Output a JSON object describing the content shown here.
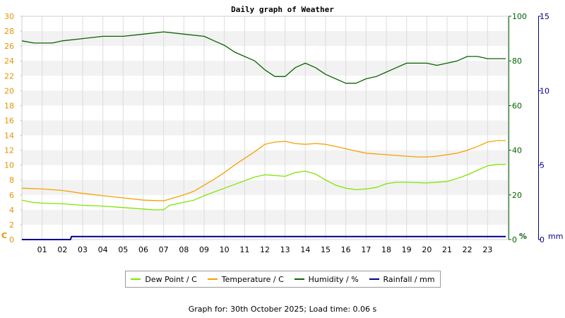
{
  "chart_data": {
    "type": "line",
    "title": "Daily graph of Weather",
    "x_ticks": [
      "01",
      "02",
      "03",
      "04",
      "05",
      "06",
      "07",
      "08",
      "09",
      "10",
      "11",
      "12",
      "13",
      "14",
      "15",
      "16",
      "17",
      "18",
      "19",
      "20",
      "21",
      "22",
      "23"
    ],
    "xlim": [
      0,
      24
    ],
    "grid": true,
    "legend_position": "bottom",
    "axes": {
      "left": {
        "unit": "C",
        "range": [
          0,
          30
        ],
        "ticks": [
          0,
          2,
          4,
          6,
          8,
          10,
          12,
          14,
          16,
          18,
          20,
          22,
          24,
          26,
          28,
          30
        ],
        "color": "#e59400"
      },
      "right1": {
        "unit": "%",
        "range": [
          0,
          100
        ],
        "ticks": [
          0,
          20,
          40,
          60,
          80,
          100
        ],
        "color": "#006400"
      },
      "right2": {
        "unit": "mm",
        "range": [
          0,
          15
        ],
        "ticks": [
          0,
          5,
          10,
          15
        ],
        "color": "#00008b"
      }
    },
    "series": [
      {
        "name": "Dew Point / C",
        "axis": "left",
        "color": "#7fe600",
        "points": [
          [
            0,
            5.3
          ],
          [
            0.5,
            5.0
          ],
          [
            1,
            4.9
          ],
          [
            2,
            4.8
          ],
          [
            3,
            4.6
          ],
          [
            4,
            4.5
          ],
          [
            5,
            4.3
          ],
          [
            6,
            4.1
          ],
          [
            6.5,
            4.0
          ],
          [
            7,
            4.0
          ],
          [
            7.3,
            4.6
          ],
          [
            8,
            5.0
          ],
          [
            8.5,
            5.3
          ],
          [
            9,
            5.9
          ],
          [
            10,
            6.9
          ],
          [
            11,
            7.9
          ],
          [
            11.5,
            8.4
          ],
          [
            12,
            8.7
          ],
          [
            12.5,
            8.6
          ],
          [
            13,
            8.5
          ],
          [
            13.5,
            9.0
          ],
          [
            14,
            9.2
          ],
          [
            14.5,
            8.8
          ],
          [
            15,
            8.0
          ],
          [
            15.5,
            7.3
          ],
          [
            16,
            6.9
          ],
          [
            16.5,
            6.7
          ],
          [
            17,
            6.8
          ],
          [
            17.5,
            7.0
          ],
          [
            18,
            7.5
          ],
          [
            18.5,
            7.7
          ],
          [
            19,
            7.7
          ],
          [
            20,
            7.6
          ],
          [
            21,
            7.8
          ],
          [
            21.5,
            8.2
          ],
          [
            22,
            8.7
          ],
          [
            22.5,
            9.3
          ],
          [
            23,
            9.9
          ],
          [
            23.5,
            10.1
          ],
          [
            23.9,
            10.1
          ]
        ]
      },
      {
        "name": "Temperature / C",
        "axis": "left",
        "color": "#f5a200",
        "points": [
          [
            0,
            6.9
          ],
          [
            1,
            6.8
          ],
          [
            2,
            6.6
          ],
          [
            3,
            6.2
          ],
          [
            4,
            5.9
          ],
          [
            5,
            5.6
          ],
          [
            6,
            5.3
          ],
          [
            7,
            5.2
          ],
          [
            7.5,
            5.6
          ],
          [
            8,
            6.0
          ],
          [
            8.5,
            6.5
          ],
          [
            9,
            7.3
          ],
          [
            9.5,
            8.1
          ],
          [
            10,
            9.0
          ],
          [
            10.5,
            10.0
          ],
          [
            11,
            10.9
          ],
          [
            11.5,
            11.8
          ],
          [
            12,
            12.8
          ],
          [
            12.5,
            13.1
          ],
          [
            13,
            13.2
          ],
          [
            13.5,
            12.9
          ],
          [
            14,
            12.8
          ],
          [
            14.5,
            12.9
          ],
          [
            15,
            12.8
          ],
          [
            15.5,
            12.5
          ],
          [
            16,
            12.2
          ],
          [
            16.5,
            11.9
          ],
          [
            17,
            11.6
          ],
          [
            17.5,
            11.5
          ],
          [
            18,
            11.4
          ],
          [
            18.5,
            11.3
          ],
          [
            19,
            11.2
          ],
          [
            19.5,
            11.1
          ],
          [
            20,
            11.1
          ],
          [
            20.5,
            11.2
          ],
          [
            21,
            11.4
          ],
          [
            21.5,
            11.6
          ],
          [
            22,
            12.0
          ],
          [
            22.5,
            12.5
          ],
          [
            23,
            13.1
          ],
          [
            23.5,
            13.3
          ],
          [
            23.9,
            13.3
          ]
        ]
      },
      {
        "name": "Humidity / %",
        "axis": "right1",
        "color": "#0a6400",
        "points": [
          [
            0,
            89
          ],
          [
            0.6,
            88
          ],
          [
            1.5,
            88
          ],
          [
            2,
            89
          ],
          [
            3,
            90
          ],
          [
            4,
            91
          ],
          [
            5,
            91
          ],
          [
            6,
            92
          ],
          [
            7,
            93
          ],
          [
            8,
            92
          ],
          [
            9,
            91
          ],
          [
            9.5,
            89
          ],
          [
            10,
            87
          ],
          [
            10.5,
            84
          ],
          [
            11,
            82
          ],
          [
            11.5,
            80
          ],
          [
            12,
            76
          ],
          [
            12.5,
            73
          ],
          [
            13,
            73
          ],
          [
            13.5,
            77
          ],
          [
            14,
            79
          ],
          [
            14.5,
            77
          ],
          [
            15,
            74
          ],
          [
            15.5,
            72
          ],
          [
            16,
            70
          ],
          [
            16.5,
            70
          ],
          [
            17,
            72
          ],
          [
            17.5,
            73
          ],
          [
            18,
            75
          ],
          [
            18.5,
            77
          ],
          [
            19,
            79
          ],
          [
            20,
            79
          ],
          [
            20.5,
            78
          ],
          [
            21,
            79
          ],
          [
            21.5,
            80
          ],
          [
            22,
            82
          ],
          [
            22.5,
            82
          ],
          [
            23,
            81
          ],
          [
            23.5,
            81
          ],
          [
            23.9,
            81
          ]
        ]
      },
      {
        "name": "Rainfall / mm",
        "axis": "right2",
        "color": "#00008b",
        "points": [
          [
            0,
            0
          ],
          [
            2.4,
            0
          ],
          [
            2.45,
            0.2
          ],
          [
            23.9,
            0.2
          ]
        ]
      }
    ]
  },
  "footer": {
    "text": "Graph for: 30th October 2025; Load time: 0.06 s"
  }
}
